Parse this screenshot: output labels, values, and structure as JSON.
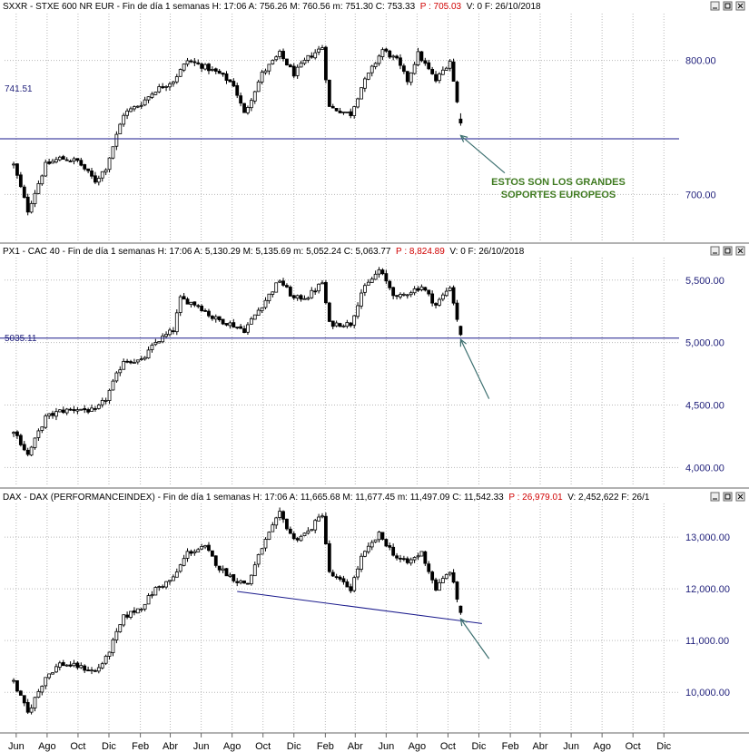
{
  "chart_data": [
    {
      "type": "candlestick",
      "header": {
        "main": "SXXR - STXE 600 NR EUR - Fin de día 1 semanas  H: 17:06  A: 756.26  M: 760.56  m: 751.30  C: 753.33",
        "red": "P : 705.03",
        "tail": "V: 0  F: 26/10/2018"
      },
      "ylim": [
        665,
        835
      ],
      "yticks": [
        "800.00",
        "700.00"
      ],
      "ytick_values": [
        800,
        700
      ],
      "level_line": {
        "value": 741.51,
        "label": "741.51"
      },
      "arrow": {
        "from": [
          "2019-01-21",
          716
        ],
        "to": [
          "2018-10-26",
          744
        ]
      },
      "annotation": [
        "ESTOS SON LOS GRANDES",
        "SOPORTES EUROPEOS"
      ],
      "waypoints": [
        [
          "2016-05-27",
          722
        ],
        [
          "2016-06-24",
          688
        ],
        [
          "2016-07-29",
          722
        ],
        [
          "2016-08-26",
          727
        ],
        [
          "2016-09-30",
          725
        ],
        [
          "2016-11-04",
          710
        ],
        [
          "2016-11-25",
          720
        ],
        [
          "2016-12-30",
          760
        ],
        [
          "2017-02-03",
          768
        ],
        [
          "2017-03-03",
          778
        ],
        [
          "2017-04-07",
          785
        ],
        [
          "2017-05-05",
          800
        ],
        [
          "2017-06-09",
          795
        ],
        [
          "2017-07-07",
          790
        ],
        [
          "2017-08-04",
          782
        ],
        [
          "2017-08-25",
          760
        ],
        [
          "2017-09-29",
          790
        ],
        [
          "2017-11-03",
          805
        ],
        [
          "2017-12-01",
          790
        ],
        [
          "2017-12-29",
          802
        ],
        [
          "2018-01-26",
          810
        ],
        [
          "2018-02-09",
          765
        ],
        [
          "2018-03-23",
          760
        ],
        [
          "2018-04-13",
          780
        ],
        [
          "2018-05-25",
          808
        ],
        [
          "2018-06-22",
          800
        ],
        [
          "2018-07-13",
          785
        ],
        [
          "2018-08-03",
          805
        ],
        [
          "2018-09-07",
          785
        ],
        [
          "2018-10-05",
          800
        ],
        [
          "2018-10-26",
          753
        ]
      ],
      "last_candle": {
        "date": "2018-10-26",
        "open": 756.26,
        "high": 760.56,
        "low": 751.3,
        "close": 753.33
      }
    },
    {
      "type": "candlestick",
      "header": {
        "main": "PX1 - CAC 40 - Fin de día 1 semanas  H: 17:06  A: 5,130.29  M: 5,135.69  m: 5,052.24  C: 5,063.77",
        "red": "P : 8,824.89",
        "tail": "V: 0  F: 26/10/2018"
      },
      "ylim": [
        3850,
        5680
      ],
      "yticks": [
        "5,500.00",
        "5,000.00",
        "4,500.00",
        "4,000.00"
      ],
      "ytick_values": [
        5500,
        5000,
        4500,
        4000
      ],
      "level_line": {
        "value": 5035.11,
        "label": "5035.11"
      },
      "arrow": {
        "from": [
          "2018-12-21",
          4550
        ],
        "to": [
          "2018-10-26",
          5025
        ]
      },
      "waypoints": [
        [
          "2016-05-27",
          4300
        ],
        [
          "2016-06-24",
          4100
        ],
        [
          "2016-07-29",
          4400
        ],
        [
          "2016-08-26",
          4450
        ],
        [
          "2016-09-30",
          4470
        ],
        [
          "2016-11-04",
          4450
        ],
        [
          "2016-11-25",
          4550
        ],
        [
          "2016-12-30",
          4860
        ],
        [
          "2017-02-03",
          4850
        ],
        [
          "2017-03-03",
          5000
        ],
        [
          "2017-04-07",
          5100
        ],
        [
          "2017-04-21",
          5350
        ],
        [
          "2017-05-26",
          5300
        ],
        [
          "2017-06-23",
          5200
        ],
        [
          "2017-07-28",
          5150
        ],
        [
          "2017-08-25",
          5100
        ],
        [
          "2017-09-29",
          5300
        ],
        [
          "2017-11-03",
          5500
        ],
        [
          "2017-12-01",
          5350
        ],
        [
          "2017-12-29",
          5370
        ],
        [
          "2018-01-26",
          5480
        ],
        [
          "2018-02-09",
          5150
        ],
        [
          "2018-03-23",
          5150
        ],
        [
          "2018-04-13",
          5400
        ],
        [
          "2018-05-18",
          5580
        ],
        [
          "2018-06-22",
          5350
        ],
        [
          "2018-07-13",
          5400
        ],
        [
          "2018-08-10",
          5450
        ],
        [
          "2018-09-07",
          5300
        ],
        [
          "2018-10-05",
          5450
        ],
        [
          "2018-10-26",
          5064
        ]
      ],
      "last_candle": {
        "date": "2018-10-26",
        "open": 5130.29,
        "high": 5135.69,
        "low": 5052.24,
        "close": 5063.77
      }
    },
    {
      "type": "candlestick",
      "header": {
        "main": "DAX - DAX (PERFORMANCEINDEX) - Fin de día 1 semanas  H: 17:06  A: 11,665.68  M: 11,677.45  m: 11,497.09  C: 11,542.33",
        "red": "P : 26,979.01",
        "tail": "V: 2,452,622  F: 26/1"
      },
      "ylim": [
        9250,
        13650
      ],
      "yticks": [
        "13,000.00",
        "12,000.00",
        "11,000.00",
        "10,000.00"
      ],
      "ytick_values": [
        13000,
        12000,
        11000,
        10000
      ],
      "trendline": [
        [
          "2017-08-11",
          11950
        ],
        [
          "2018-12-07",
          11330
        ]
      ],
      "arrow": {
        "from": [
          "2018-12-21",
          10650
        ],
        "to": [
          "2018-10-26",
          11420
        ]
      },
      "waypoints": [
        [
          "2016-05-27",
          10200
        ],
        [
          "2016-06-24",
          9600
        ],
        [
          "2016-07-29",
          10300
        ],
        [
          "2016-08-26",
          10550
        ],
        [
          "2016-09-30",
          10500
        ],
        [
          "2016-11-04",
          10400
        ],
        [
          "2016-11-25",
          10650
        ],
        [
          "2016-12-30",
          11450
        ],
        [
          "2017-02-03",
          11650
        ],
        [
          "2017-03-03",
          12000
        ],
        [
          "2017-04-07",
          12200
        ],
        [
          "2017-05-05",
          12700
        ],
        [
          "2017-06-09",
          12800
        ],
        [
          "2017-07-07",
          12400
        ],
        [
          "2017-08-11",
          12150
        ],
        [
          "2017-09-01",
          12100
        ],
        [
          "2017-09-29",
          12800
        ],
        [
          "2017-11-03",
          13450
        ],
        [
          "2017-12-01",
          12950
        ],
        [
          "2017-12-29",
          13100
        ],
        [
          "2018-01-26",
          13450
        ],
        [
          "2018-02-09",
          12300
        ],
        [
          "2018-03-23",
          12000
        ],
        [
          "2018-04-13",
          12600
        ],
        [
          "2018-05-18",
          13050
        ],
        [
          "2018-06-22",
          12600
        ],
        [
          "2018-07-13",
          12500
        ],
        [
          "2018-08-10",
          12700
        ],
        [
          "2018-09-07",
          12000
        ],
        [
          "2018-10-05",
          12350
        ],
        [
          "2018-10-26",
          11542
        ]
      ],
      "last_candle": {
        "date": "2018-10-26",
        "open": 11665.68,
        "high": 11677.45,
        "low": 11497.09,
        "close": 11542.33
      }
    }
  ],
  "x_axis": {
    "labels": [
      "Jun",
      "Ago",
      "Oct",
      "Dic",
      "Feb",
      "Abr",
      "Jun",
      "Ago",
      "Oct",
      "Dic",
      "Feb",
      "Abr",
      "Jun",
      "Ago",
      "Oct",
      "Dic",
      "Feb",
      "Abr",
      "Jun",
      "Ago",
      "Oct",
      "Dic"
    ],
    "label_dates": [
      "2016-06-01",
      "2016-08-01",
      "2016-10-01",
      "2016-12-01",
      "2017-02-01",
      "2017-04-01",
      "2017-06-01",
      "2017-08-01",
      "2017-10-01",
      "2017-12-01",
      "2018-02-01",
      "2018-04-01",
      "2018-06-01",
      "2018-08-01",
      "2018-10-01",
      "2018-12-01",
      "2019-02-01",
      "2019-04-01",
      "2019-06-01",
      "2019-08-01",
      "2019-10-01",
      "2019-12-01"
    ],
    "range": [
      "2016-05-09",
      "2019-12-31"
    ]
  },
  "colors": {
    "grid": "#b8b8b8",
    "support_line": "#1a1a8c",
    "arrow": "#3d7070",
    "annotation": "#3f7a20",
    "candle": "#000000",
    "header_red": "#d00000",
    "axis_labels": "#1f1f7a"
  }
}
